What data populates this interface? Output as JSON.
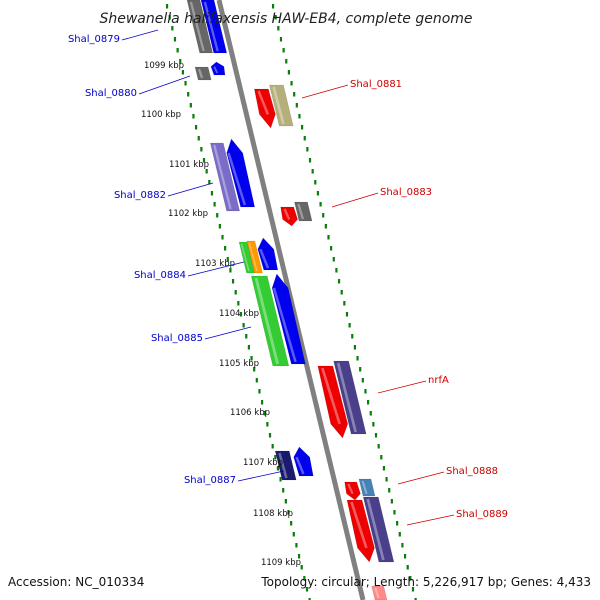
{
  "title": "Shewanella halifaxensis HAW-EB4, complete genome",
  "footer": {
    "accession": "Accession: NC_010334",
    "summary": "Topology: circular; Length: 5,226,917 bp; Genes: 4,433"
  },
  "kbp_ticks": [
    {
      "label": "1099 kbp"
    },
    {
      "label": "1100 kbp"
    },
    {
      "label": "1101 kbp"
    },
    {
      "label": "1102 kbp"
    },
    {
      "label": "1103 kbp"
    },
    {
      "label": "1104 kbp"
    },
    {
      "label": "1105 kbp"
    },
    {
      "label": "1106 kbp"
    },
    {
      "label": "1107 kbp"
    },
    {
      "label": "1108 kbp"
    },
    {
      "label": "1109 kbp"
    }
  ],
  "left_labels": [
    {
      "text": "Shal_0879"
    },
    {
      "text": "Shal_0880"
    },
    {
      "text": "Shal_0882"
    },
    {
      "text": "Shal_0884"
    },
    {
      "text": "Shal_0885"
    },
    {
      "text": "Shal_0887"
    }
  ],
  "right_labels": [
    {
      "text": "Shal_0881"
    },
    {
      "text": "Shal_0883"
    },
    {
      "text": "nrfA"
    },
    {
      "text": "Shal_0888"
    },
    {
      "text": "Shal_0889"
    }
  ],
  "colors": {
    "backbone": "#808080",
    "dots": "#0a7d0a",
    "left_label": "#0000cc",
    "right_label": "#cc0000",
    "gene_blue": "#0000ee",
    "gene_red": "#ee0000",
    "gene_gray": "#666666",
    "gene_khaki": "#b5b07a",
    "gene_violet": "#7a6cc8",
    "gene_green": "#33cc33",
    "gene_orange": "#ff9900",
    "gene_navy": "#1a1a6e",
    "gene_darkviolet": "#4a3f8a",
    "gene_steel": "#4682b4",
    "gene_pink": "#ff8888"
  }
}
